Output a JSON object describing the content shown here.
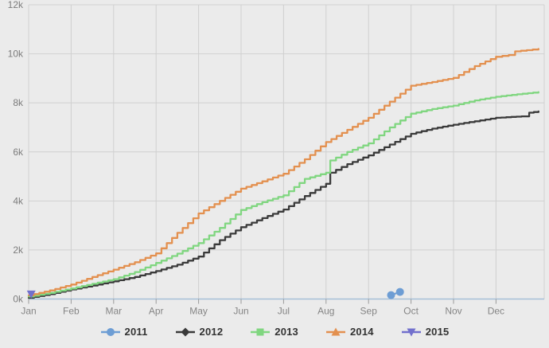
{
  "chart_data": {
    "type": "line",
    "title": "",
    "xlabel": "",
    "ylabel": "",
    "x_categories": [
      "Jan",
      "Feb",
      "Mar",
      "Apr",
      "May",
      "Jun",
      "Jul",
      "Aug",
      "Sep",
      "Oct",
      "Nov",
      "Dec"
    ],
    "y_tick_labels": [
      "0k",
      "2k",
      "4k",
      "6k",
      "8k",
      "10k",
      "12k"
    ],
    "y_tick_values": [
      0,
      2000,
      4000,
      6000,
      8000,
      10000,
      12000
    ],
    "ylim": [
      0,
      12000
    ],
    "x_months_range": [
      0,
      12.2
    ],
    "grid": true,
    "legend_position": "bottom-center",
    "colors": {
      "background": "#ebebeb",
      "gridline": "#d0d0d0",
      "x_axis_line": "#a6bfd8",
      "tick_mark": "#9a9a9a",
      "y_label": "#7c7c7c",
      "x_label": "#858585",
      "legend_text": "#333333"
    },
    "series": [
      {
        "name": "2011",
        "color": "#6d9dd4",
        "marker": "circle",
        "style": "points",
        "points": [
          [
            8.53,
            160
          ],
          [
            8.74,
            290
          ]
        ]
      },
      {
        "name": "2012",
        "color": "#3a3a3a",
        "marker": "diamond",
        "style": "steps",
        "points": [
          [
            0,
            50
          ],
          [
            0.5,
            200
          ],
          [
            1,
            390
          ],
          [
            1.5,
            550
          ],
          [
            2,
            720
          ],
          [
            2.5,
            900
          ],
          [
            3,
            1140
          ],
          [
            3.5,
            1400
          ],
          [
            4,
            1730
          ],
          [
            4.5,
            2400
          ],
          [
            5,
            2930
          ],
          [
            5.5,
            3300
          ],
          [
            6,
            3650
          ],
          [
            6.5,
            4200
          ],
          [
            7,
            4700
          ],
          [
            7.1,
            5150
          ],
          [
            7.5,
            5500
          ],
          [
            8,
            5860
          ],
          [
            8.5,
            6300
          ],
          [
            9,
            6740
          ],
          [
            9.5,
            6950
          ],
          [
            10,
            7110
          ],
          [
            10.5,
            7250
          ],
          [
            11,
            7390
          ],
          [
            11.6,
            7450
          ],
          [
            11.78,
            7600
          ],
          [
            12,
            7650
          ]
        ]
      },
      {
        "name": "2013",
        "color": "#80d680",
        "marker": "square",
        "style": "steps",
        "points": [
          [
            0,
            100
          ],
          [
            0.5,
            250
          ],
          [
            1,
            430
          ],
          [
            1.5,
            620
          ],
          [
            2,
            810
          ],
          [
            2.5,
            1100
          ],
          [
            3,
            1470
          ],
          [
            3.5,
            1850
          ],
          [
            4,
            2280
          ],
          [
            4.5,
            2900
          ],
          [
            5,
            3630
          ],
          [
            5.5,
            3950
          ],
          [
            6,
            4230
          ],
          [
            6.5,
            4900
          ],
          [
            7,
            5150
          ],
          [
            7.1,
            5650
          ],
          [
            7.5,
            6000
          ],
          [
            8,
            6350
          ],
          [
            8.5,
            7000
          ],
          [
            9,
            7560
          ],
          [
            9.5,
            7750
          ],
          [
            10,
            7890
          ],
          [
            10.5,
            8100
          ],
          [
            11,
            8250
          ],
          [
            11.5,
            8350
          ],
          [
            12,
            8440
          ]
        ]
      },
      {
        "name": "2014",
        "color": "#e3904f",
        "marker": "triangle-up",
        "style": "steps",
        "points": [
          [
            0,
            150
          ],
          [
            0.5,
            350
          ],
          [
            1,
            590
          ],
          [
            1.5,
            900
          ],
          [
            2,
            1200
          ],
          [
            2.5,
            1500
          ],
          [
            3,
            1860
          ],
          [
            3.5,
            2700
          ],
          [
            4,
            3490
          ],
          [
            4.5,
            4000
          ],
          [
            5,
            4500
          ],
          [
            5.5,
            4800
          ],
          [
            6,
            5110
          ],
          [
            6.5,
            5700
          ],
          [
            7,
            6400
          ],
          [
            7.5,
            6900
          ],
          [
            8,
            7390
          ],
          [
            8.5,
            8050
          ],
          [
            9,
            8700
          ],
          [
            9.5,
            8850
          ],
          [
            10,
            9020
          ],
          [
            10.5,
            9500
          ],
          [
            11,
            9880
          ],
          [
            11.3,
            9950
          ],
          [
            11.45,
            10100
          ],
          [
            12,
            10200
          ]
        ]
      },
      {
        "name": "2015",
        "color": "#7270cd",
        "marker": "triangle-down",
        "style": "points",
        "points": [
          [
            0.06,
            200
          ]
        ]
      }
    ]
  }
}
